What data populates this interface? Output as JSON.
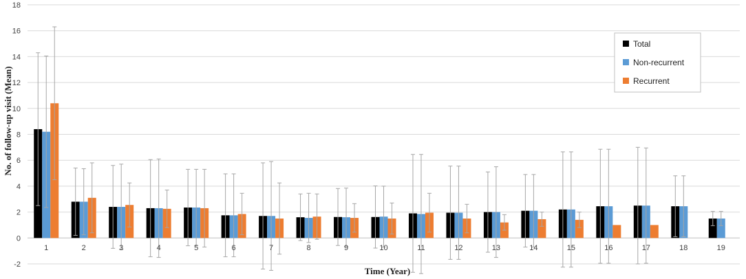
{
  "chart_data": {
    "type": "bar",
    "title": "",
    "xlabel": "Time (Year)",
    "ylabel": "No. of follow-up visit (Mean)",
    "ylim": [
      -2,
      18
    ],
    "yticks": [
      -2,
      0,
      2,
      4,
      6,
      8,
      10,
      12,
      14,
      16,
      18
    ],
    "grid": true,
    "legend_position": "top-right",
    "categories": [
      "1",
      "2",
      "3",
      "4",
      "5",
      "6",
      "7",
      "8",
      "9",
      "10",
      "11",
      "12",
      "13",
      "14",
      "15",
      "16",
      "17",
      "18",
      "19"
    ],
    "series": [
      {
        "name": "Total",
        "color": "#000000",
        "values": [
          8.4,
          2.8,
          2.4,
          2.3,
          2.35,
          1.75,
          1.7,
          1.6,
          1.62,
          1.62,
          1.9,
          1.95,
          2.0,
          2.1,
          2.2,
          2.45,
          2.5,
          2.45,
          1.5
        ],
        "error": [
          5.9,
          2.6,
          3.2,
          3.75,
          2.95,
          3.2,
          4.1,
          1.8,
          2.2,
          2.4,
          4.55,
          3.6,
          3.1,
          2.8,
          4.45,
          4.4,
          4.5,
          2.35,
          0.55
        ]
      },
      {
        "name": "Non-recurrent",
        "color": "#5b9bd5",
        "values": [
          8.2,
          2.8,
          2.4,
          2.3,
          2.35,
          1.75,
          1.7,
          1.55,
          1.6,
          1.65,
          1.85,
          1.95,
          2.0,
          2.1,
          2.2,
          2.45,
          2.5,
          2.45,
          1.5
        ],
        "error": [
          5.85,
          2.55,
          3.3,
          3.8,
          2.95,
          3.2,
          4.2,
          1.9,
          2.25,
          2.35,
          4.6,
          3.6,
          3.5,
          2.8,
          4.45,
          4.4,
          4.45,
          2.35,
          0.55
        ]
      },
      {
        "name": "Recurrent",
        "color": "#ed7d31",
        "values": [
          10.4,
          3.1,
          2.55,
          2.25,
          2.3,
          1.85,
          1.5,
          1.65,
          1.55,
          1.5,
          1.95,
          1.5,
          1.2,
          1.45,
          1.4,
          1.0,
          1.0,
          null,
          null
        ],
        "error": [
          5.9,
          2.7,
          1.7,
          1.45,
          3.0,
          1.6,
          2.75,
          1.75,
          1.1,
          1.2,
          1.5,
          1.1,
          0.6,
          0.55,
          0.6,
          0,
          0,
          null,
          null
        ]
      }
    ]
  }
}
